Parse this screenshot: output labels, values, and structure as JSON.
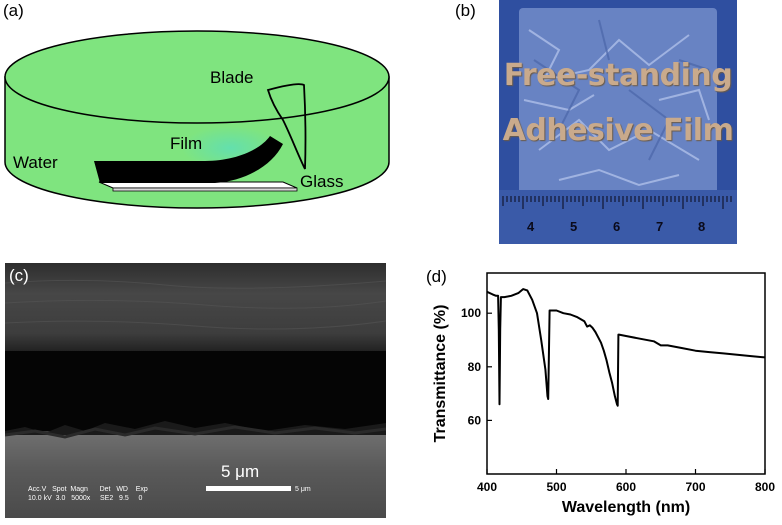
{
  "panel_a": {
    "label": "(a)",
    "blade_label": "Blade",
    "film_label": "Film",
    "water_label": "Water",
    "glass_label": "Glass",
    "colors": {
      "water": "#7fe47f",
      "film_glow": "#62dfb0",
      "film": "#000000",
      "glass": "#ffffff"
    }
  },
  "panel_b": {
    "label": "(b)",
    "title_line1": "Free-standing",
    "title_line2": "Adhesive Film",
    "ruler_numbers": [
      "4",
      "5",
      "6",
      "7",
      "8"
    ],
    "colors": {
      "background": "#2f4fa0",
      "text": "#c9aa8c"
    }
  },
  "panel_c": {
    "label": "(c)",
    "scale_bar_label": "5 μm",
    "info_header": "Acc.V   Spot  Magn      Det   WD    Exp",
    "info_values": "10.0 kV  3.0   5000x     SE2   9.5     0",
    "info_scale": "5 μm"
  },
  "panel_d": {
    "label": "(d)"
  },
  "chart_data": {
    "type": "line",
    "title": "",
    "xlabel": "Wavelength (nm)",
    "ylabel": "Transmittance (%)",
    "xlim": [
      400,
      800
    ],
    "ylim": [
      40,
      115
    ],
    "xticks": [
      400,
      500,
      600,
      700,
      800
    ],
    "yticks": [
      60,
      80,
      100
    ],
    "grid": false,
    "series": [
      {
        "color": "#000000",
        "x": [
          400,
          408,
          413,
          416,
          417,
          418,
          419,
          420,
          425,
          435,
          445,
          452,
          458,
          465,
          472,
          478,
          484,
          487,
          488,
          490,
          500,
          510,
          520,
          530,
          540,
          544,
          548,
          552,
          556,
          560,
          564,
          568,
          572,
          576,
          580,
          584,
          587,
          588,
          589,
          590,
          600,
          620,
          640,
          650,
          660,
          680,
          700,
          720,
          740,
          760,
          780,
          800
        ],
        "y": [
          108,
          107,
          106.5,
          106.5,
          94,
          66,
          94,
          106,
          106,
          106.5,
          107.5,
          109,
          108.5,
          105,
          100,
          90,
          79,
          69,
          68,
          101,
          101,
          100,
          99.5,
          98.5,
          97,
          95,
          95.5,
          94.5,
          93,
          91,
          89,
          86,
          82.5,
          78,
          74,
          69,
          66,
          65.5,
          92,
          92,
          91.5,
          90.5,
          89.5,
          88,
          88,
          87,
          86,
          85.5,
          85,
          84.5,
          84,
          83.5
        ]
      }
    ]
  }
}
